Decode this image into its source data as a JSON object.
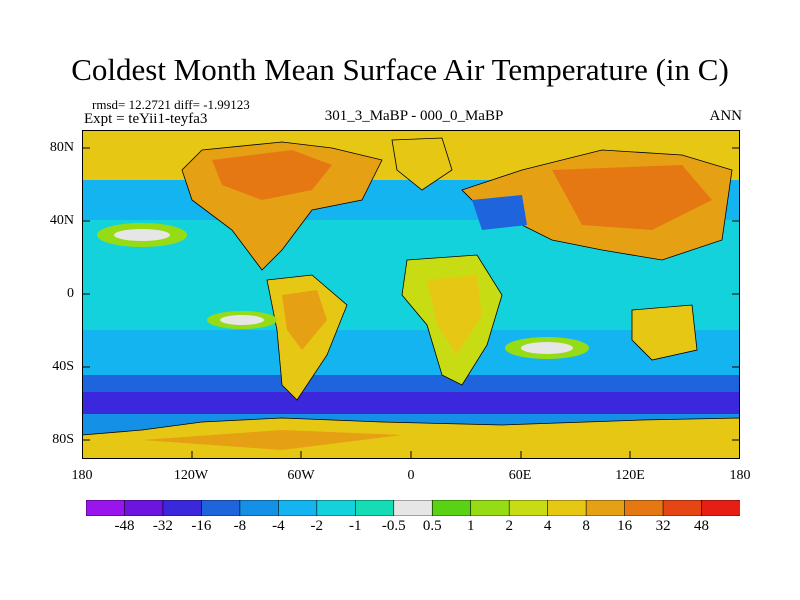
{
  "title": "Coldest Month Mean Surface Air Temperature (in C)",
  "stats": "rmsd= 12.2721 diff= -1.99123",
  "experiment": "Expt = teYii1-teyfa3",
  "comparison": "301_3_MaBP - 000_0_MaBP",
  "season": "ANN",
  "lat_labels": [
    "80N",
    "40N",
    "0",
    "40S",
    "80S"
  ],
  "lon_labels": [
    "180",
    "120W",
    "60W",
    "0",
    "60E",
    "120E",
    "180"
  ],
  "colorbar": {
    "labels": [
      "-48",
      "-32",
      "-16",
      "-8",
      "-4",
      "-2",
      "-1",
      "-0.5",
      "0.5",
      "1",
      "2",
      "4",
      "8",
      "16",
      "32",
      "48"
    ],
    "colors": [
      "#9a14ee",
      "#6e14e0",
      "#3c28dc",
      "#1e64dc",
      "#1490e6",
      "#14b4f0",
      "#14d2dc",
      "#14dcb4",
      "#e6e6e6",
      "#5ad214",
      "#96dc14",
      "#c8dc14",
      "#e6c814",
      "#e6a014",
      "#e67814",
      "#e64614",
      "#e61e14"
    ]
  }
}
